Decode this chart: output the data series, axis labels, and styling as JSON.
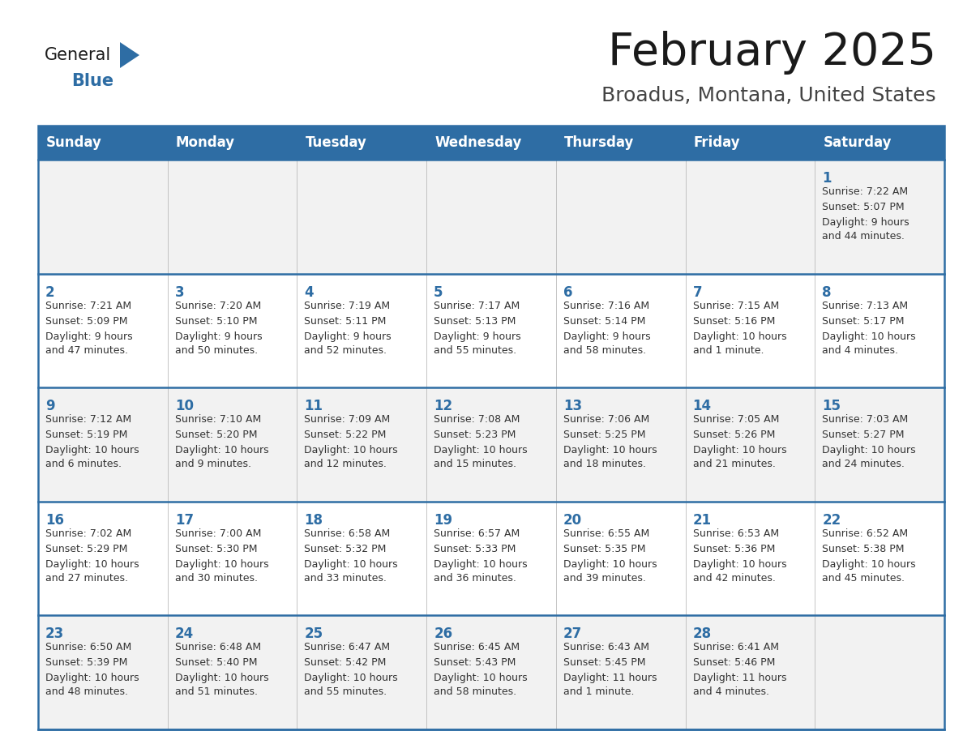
{
  "title": "February 2025",
  "subtitle": "Broadus, Montana, United States",
  "days_of_week": [
    "Sunday",
    "Monday",
    "Tuesday",
    "Wednesday",
    "Thursday",
    "Friday",
    "Saturday"
  ],
  "header_bg": "#2E6DA4",
  "header_text": "#FFFFFF",
  "cell_bg_odd": "#F2F2F2",
  "cell_bg_even": "#FFFFFF",
  "border_color": "#2E6DA4",
  "title_color": "#1a1a1a",
  "subtitle_color": "#444444",
  "day_num_color": "#2E6DA4",
  "cell_text_color": "#333333",
  "logo_general_color": "#1a1a1a",
  "logo_blue_color": "#2E6DA4",
  "calendar_data": [
    [
      null,
      null,
      null,
      null,
      null,
      null,
      {
        "day": "1",
        "sunrise": "7:22 AM",
        "sunset": "5:07 PM",
        "daylight": "9 hours\nand 44 minutes."
      }
    ],
    [
      {
        "day": "2",
        "sunrise": "7:21 AM",
        "sunset": "5:09 PM",
        "daylight": "9 hours\nand 47 minutes."
      },
      {
        "day": "3",
        "sunrise": "7:20 AM",
        "sunset": "5:10 PM",
        "daylight": "9 hours\nand 50 minutes."
      },
      {
        "day": "4",
        "sunrise": "7:19 AM",
        "sunset": "5:11 PM",
        "daylight": "9 hours\nand 52 minutes."
      },
      {
        "day": "5",
        "sunrise": "7:17 AM",
        "sunset": "5:13 PM",
        "daylight": "9 hours\nand 55 minutes."
      },
      {
        "day": "6",
        "sunrise": "7:16 AM",
        "sunset": "5:14 PM",
        "daylight": "9 hours\nand 58 minutes."
      },
      {
        "day": "7",
        "sunrise": "7:15 AM",
        "sunset": "5:16 PM",
        "daylight": "10 hours\nand 1 minute."
      },
      {
        "day": "8",
        "sunrise": "7:13 AM",
        "sunset": "5:17 PM",
        "daylight": "10 hours\nand 4 minutes."
      }
    ],
    [
      {
        "day": "9",
        "sunrise": "7:12 AM",
        "sunset": "5:19 PM",
        "daylight": "10 hours\nand 6 minutes."
      },
      {
        "day": "10",
        "sunrise": "7:10 AM",
        "sunset": "5:20 PM",
        "daylight": "10 hours\nand 9 minutes."
      },
      {
        "day": "11",
        "sunrise": "7:09 AM",
        "sunset": "5:22 PM",
        "daylight": "10 hours\nand 12 minutes."
      },
      {
        "day": "12",
        "sunrise": "7:08 AM",
        "sunset": "5:23 PM",
        "daylight": "10 hours\nand 15 minutes."
      },
      {
        "day": "13",
        "sunrise": "7:06 AM",
        "sunset": "5:25 PM",
        "daylight": "10 hours\nand 18 minutes."
      },
      {
        "day": "14",
        "sunrise": "7:05 AM",
        "sunset": "5:26 PM",
        "daylight": "10 hours\nand 21 minutes."
      },
      {
        "day": "15",
        "sunrise": "7:03 AM",
        "sunset": "5:27 PM",
        "daylight": "10 hours\nand 24 minutes."
      }
    ],
    [
      {
        "day": "16",
        "sunrise": "7:02 AM",
        "sunset": "5:29 PM",
        "daylight": "10 hours\nand 27 minutes."
      },
      {
        "day": "17",
        "sunrise": "7:00 AM",
        "sunset": "5:30 PM",
        "daylight": "10 hours\nand 30 minutes."
      },
      {
        "day": "18",
        "sunrise": "6:58 AM",
        "sunset": "5:32 PM",
        "daylight": "10 hours\nand 33 minutes."
      },
      {
        "day": "19",
        "sunrise": "6:57 AM",
        "sunset": "5:33 PM",
        "daylight": "10 hours\nand 36 minutes."
      },
      {
        "day": "20",
        "sunrise": "6:55 AM",
        "sunset": "5:35 PM",
        "daylight": "10 hours\nand 39 minutes."
      },
      {
        "day": "21",
        "sunrise": "6:53 AM",
        "sunset": "5:36 PM",
        "daylight": "10 hours\nand 42 minutes."
      },
      {
        "day": "22",
        "sunrise": "6:52 AM",
        "sunset": "5:38 PM",
        "daylight": "10 hours\nand 45 minutes."
      }
    ],
    [
      {
        "day": "23",
        "sunrise": "6:50 AM",
        "sunset": "5:39 PM",
        "daylight": "10 hours\nand 48 minutes."
      },
      {
        "day": "24",
        "sunrise": "6:48 AM",
        "sunset": "5:40 PM",
        "daylight": "10 hours\nand 51 minutes."
      },
      {
        "day": "25",
        "sunrise": "6:47 AM",
        "sunset": "5:42 PM",
        "daylight": "10 hours\nand 55 minutes."
      },
      {
        "day": "26",
        "sunrise": "6:45 AM",
        "sunset": "5:43 PM",
        "daylight": "10 hours\nand 58 minutes."
      },
      {
        "day": "27",
        "sunrise": "6:43 AM",
        "sunset": "5:45 PM",
        "daylight": "11 hours\nand 1 minute."
      },
      {
        "day": "28",
        "sunrise": "6:41 AM",
        "sunset": "5:46 PM",
        "daylight": "11 hours\nand 4 minutes."
      },
      null
    ]
  ]
}
